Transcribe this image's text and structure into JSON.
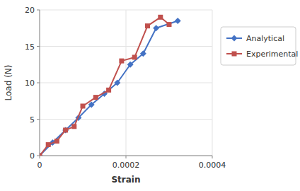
{
  "chart_data": {
    "type": "line",
    "xlabel": "Strain",
    "ylabel": "Load (N)",
    "xlim": [
      0,
      0.0004
    ],
    "ylim": [
      0,
      20
    ],
    "xticks": [
      0,
      0.0002,
      0.0004
    ],
    "yticks": [
      0,
      5,
      10,
      15,
      20
    ],
    "grid": true,
    "legend": "right",
    "series": [
      {
        "name": "Analytical",
        "color": "#4472C4",
        "marker": "diamond",
        "x": [
          0,
          3e-05,
          6e-05,
          9e-05,
          0.00012,
          0.00015,
          0.00018,
          0.00021,
          0.00024,
          0.00027,
          0.00032
        ],
        "values": [
          0,
          1.8,
          3.5,
          5.2,
          7.0,
          8.5,
          10.0,
          12.5,
          14.0,
          17.5,
          18.5
        ]
      },
      {
        "name": "Experimental",
        "color": "#C0504D",
        "marker": "square",
        "x": [
          0,
          2e-05,
          4e-05,
          6e-05,
          8e-05,
          0.0001,
          0.00013,
          0.00016,
          0.00019,
          0.00022,
          0.00025,
          0.00028,
          0.0003
        ],
        "values": [
          0,
          1.5,
          2.0,
          3.5,
          4.0,
          6.8,
          8.0,
          9.0,
          13.0,
          13.5,
          17.8,
          19.0,
          18.0
        ]
      }
    ]
  }
}
